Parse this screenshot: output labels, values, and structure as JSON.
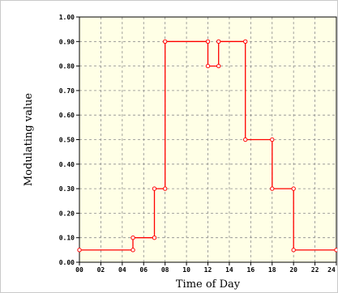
{
  "chart_data": {
    "type": "line",
    "step": true,
    "title": "",
    "xlabel": "Time of Day",
    "ylabel": "Modulating value",
    "xlim": [
      0,
      24
    ],
    "ylim": [
      0,
      1.0
    ],
    "grid": true,
    "x_tick_labels": [
      "00",
      "02",
      "04",
      "06",
      "08",
      "10",
      "12",
      "14",
      "16",
      "18",
      "20",
      "22",
      "24"
    ],
    "y_tick_labels": [
      "0.00",
      "0.10",
      "0.20",
      "0.30",
      "0.40",
      "0.50",
      "0.60",
      "0.70",
      "0.80",
      "0.90",
      "1.00"
    ],
    "colors": {
      "plot_background": "#ffffe6",
      "grid": "#8c8c8c",
      "series": "#ff0000"
    },
    "series": [
      {
        "x": [
          0,
          5,
          5,
          7,
          7,
          8,
          8,
          12,
          12,
          13,
          13,
          15.5,
          15.5,
          18,
          18,
          20,
          20,
          24
        ],
        "y": [
          0.05,
          0.05,
          0.1,
          0.1,
          0.3,
          0.3,
          0.9,
          0.9,
          0.8,
          0.8,
          0.9,
          0.9,
          0.5,
          0.5,
          0.3,
          0.3,
          0.05,
          0.05
        ]
      }
    ]
  }
}
